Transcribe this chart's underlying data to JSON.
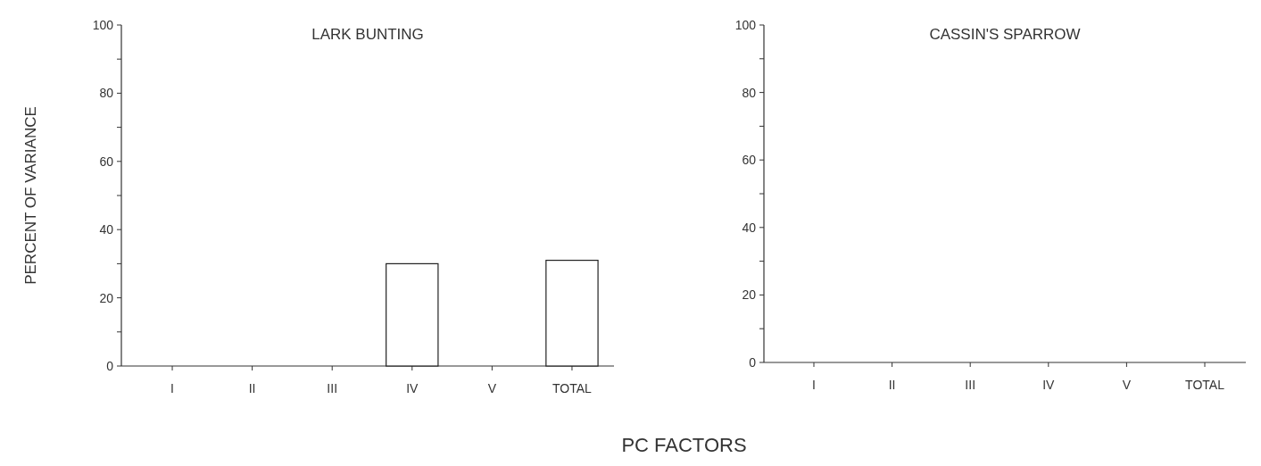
{
  "chart_data": [
    {
      "type": "bar",
      "title": "LARK BUNTING",
      "xlabel": "PC FACTORS",
      "ylabel": "PERCENT OF VARIANCE",
      "categories": [
        "I",
        "II",
        "III",
        "IV",
        "V",
        "TOTAL"
      ],
      "values": [
        0,
        0,
        0,
        30,
        0,
        31
      ],
      "color": "#ffffff",
      "ylim": [
        0,
        100
      ],
      "yticks": [
        0,
        {
          "value": 10,
          "label": null
        },
        20,
        {
          "value": 30,
          "label": null
        },
        40,
        {
          "value": 50,
          "label": null
        },
        60,
        {
          "value": 70,
          "label": null
        },
        80,
        {
          "value": 90,
          "label": null
        },
        100
      ]
    },
    {
      "type": "bar",
      "title": "CASSIN'S SPARROW",
      "categories": [
        "I",
        "II",
        "III",
        "IV",
        "V",
        "TOTAL"
      ],
      "values": [
        0,
        0,
        0,
        0,
        0,
        0
      ],
      "color": "#ffffff",
      "ylim": [
        0,
        100
      ],
      "yticks": [
        0,
        {
          "value": 10,
          "label": null
        },
        20,
        {
          "value": 30,
          "label": null
        },
        40,
        {
          "value": 50,
          "label": null
        },
        60,
        {
          "value": 70,
          "label": null
        },
        80,
        {
          "value": 90,
          "label": null
        },
        100
      ]
    }
  ]
}
